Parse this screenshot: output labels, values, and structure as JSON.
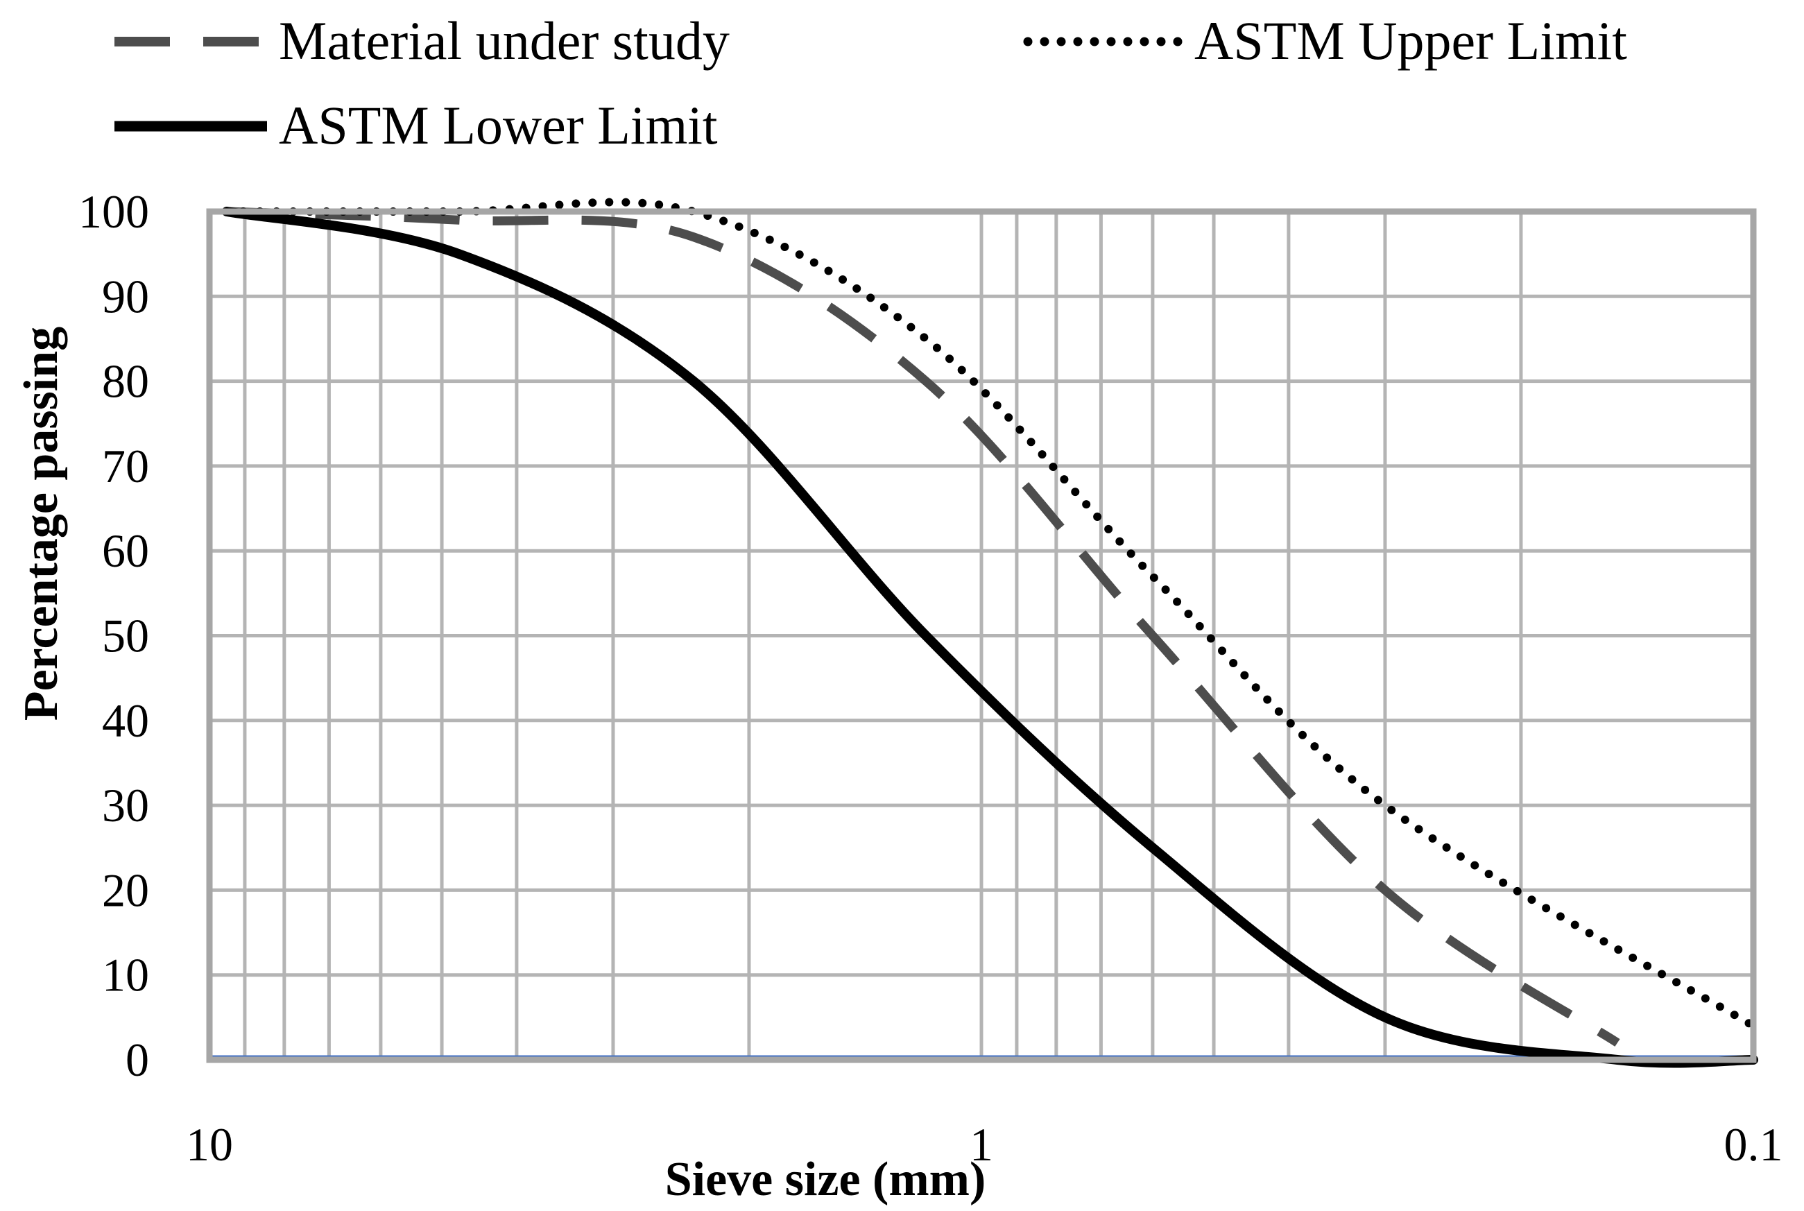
{
  "chart_data": {
    "type": "line",
    "title": "",
    "xlabel": "Sieve size (mm)",
    "ylabel": "Percentage passing",
    "x_scale": "log",
    "x_reversed": true,
    "xlim": [
      10,
      0.1
    ],
    "ylim": [
      0,
      100
    ],
    "x_ticks": [
      10,
      1,
      0.1
    ],
    "x_tick_labels": [
      "10",
      "1",
      "0.1"
    ],
    "y_ticks": [
      0,
      10,
      20,
      30,
      40,
      50,
      60,
      70,
      80,
      90,
      100
    ],
    "y_tick_labels": [
      "0",
      "10",
      "20",
      "30",
      "40",
      "50",
      "60",
      "70",
      "80",
      "90",
      "100"
    ],
    "grid": true,
    "legend_position": "top",
    "baseline_color": "#4472c4",
    "series": [
      {
        "name": "Material under study",
        "style": "dashed",
        "color": "#4d4d4d",
        "x": [
          9.5,
          4.75,
          2.36,
          1.18,
          0.6,
          0.3,
          0.15
        ],
        "y": [
          100,
          99,
          97,
          80,
          50,
          20,
          2
        ]
      },
      {
        "name": "ASTM Upper Limit",
        "style": "dotted",
        "color": "#000000",
        "x": [
          9.5,
          4.75,
          2.36,
          1.18,
          0.6,
          0.3,
          0.1
        ],
        "y": [
          100,
          100,
          100,
          85,
          57,
          30,
          4
        ]
      },
      {
        "name": "ASTM Lower Limit",
        "style": "solid",
        "color": "#000000",
        "x": [
          9.5,
          4.75,
          2.36,
          1.18,
          0.6,
          0.3,
          0.15,
          0.1
        ],
        "y": [
          100,
          95,
          80,
          50,
          25,
          5,
          0,
          0
        ]
      }
    ]
  }
}
